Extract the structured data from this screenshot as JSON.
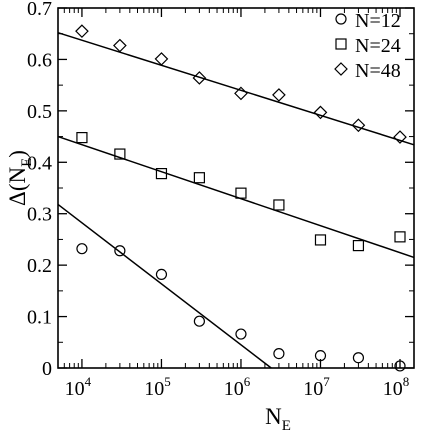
{
  "chart_data": {
    "type": "scatter",
    "xlabel": "N",
    "xlabel_sub": "E",
    "ylabel": "Δ(N",
    "ylabel_sub": "E",
    "ylabel_close": ")",
    "x_scale": "log",
    "xlim": [
      5000,
      150000000
    ],
    "ylim": [
      0,
      0.7
    ],
    "x_ticks": [
      {
        "value": 10000,
        "base": "10",
        "exp": "4"
      },
      {
        "value": 100000,
        "base": "10",
        "exp": "5"
      },
      {
        "value": 1000000,
        "base": "10",
        "exp": "6"
      },
      {
        "value": 10000000,
        "base": "10",
        "exp": "7"
      },
      {
        "value": 100000000,
        "base": "10",
        "exp": "8"
      }
    ],
    "y_ticks": [
      {
        "value": 0,
        "label": "0"
      },
      {
        "value": 0.1,
        "label": "0.1"
      },
      {
        "value": 0.2,
        "label": "0.2"
      },
      {
        "value": 0.3,
        "label": "0.3"
      },
      {
        "value": 0.4,
        "label": "0.4"
      },
      {
        "value": 0.5,
        "label": "0.5"
      },
      {
        "value": 0.6,
        "label": "0.6"
      },
      {
        "value": 0.7,
        "label": "0.7"
      }
    ],
    "legend_position": "top-right",
    "grid": false,
    "series": [
      {
        "name": "N=12",
        "marker": "circle",
        "x": [
          10000,
          30000,
          100000,
          300000,
          1000000,
          3000000,
          10000000,
          30000000,
          100000000
        ],
        "y": [
          0.232,
          0.228,
          0.182,
          0.091,
          0.066,
          0.028,
          0.024,
          0.02,
          0.004
        ],
        "fit_line": {
          "x": [
            5000,
            2400000
          ],
          "y": [
            0.318,
            0.0
          ]
        }
      },
      {
        "name": "N=24",
        "marker": "square",
        "x": [
          10000,
          30000,
          100000,
          300000,
          1000000,
          3000000,
          10000000,
          30000000,
          100000000
        ],
        "y": [
          0.448,
          0.416,
          0.378,
          0.37,
          0.34,
          0.317,
          0.249,
          0.238,
          0.255
        ],
        "fit_line": {
          "x": [
            5000,
            150000000
          ],
          "y": [
            0.45,
            0.215
          ]
        }
      },
      {
        "name": "N=48",
        "marker": "diamond",
        "x": [
          10000,
          30000,
          100000,
          300000,
          1000000,
          3000000,
          10000000,
          30000000,
          100000000
        ],
        "y": [
          0.655,
          0.627,
          0.601,
          0.564,
          0.534,
          0.531,
          0.497,
          0.472,
          0.449
        ],
        "fit_line": {
          "x": [
            5000,
            150000000
          ],
          "y": [
            0.652,
            0.434
          ]
        }
      }
    ]
  }
}
